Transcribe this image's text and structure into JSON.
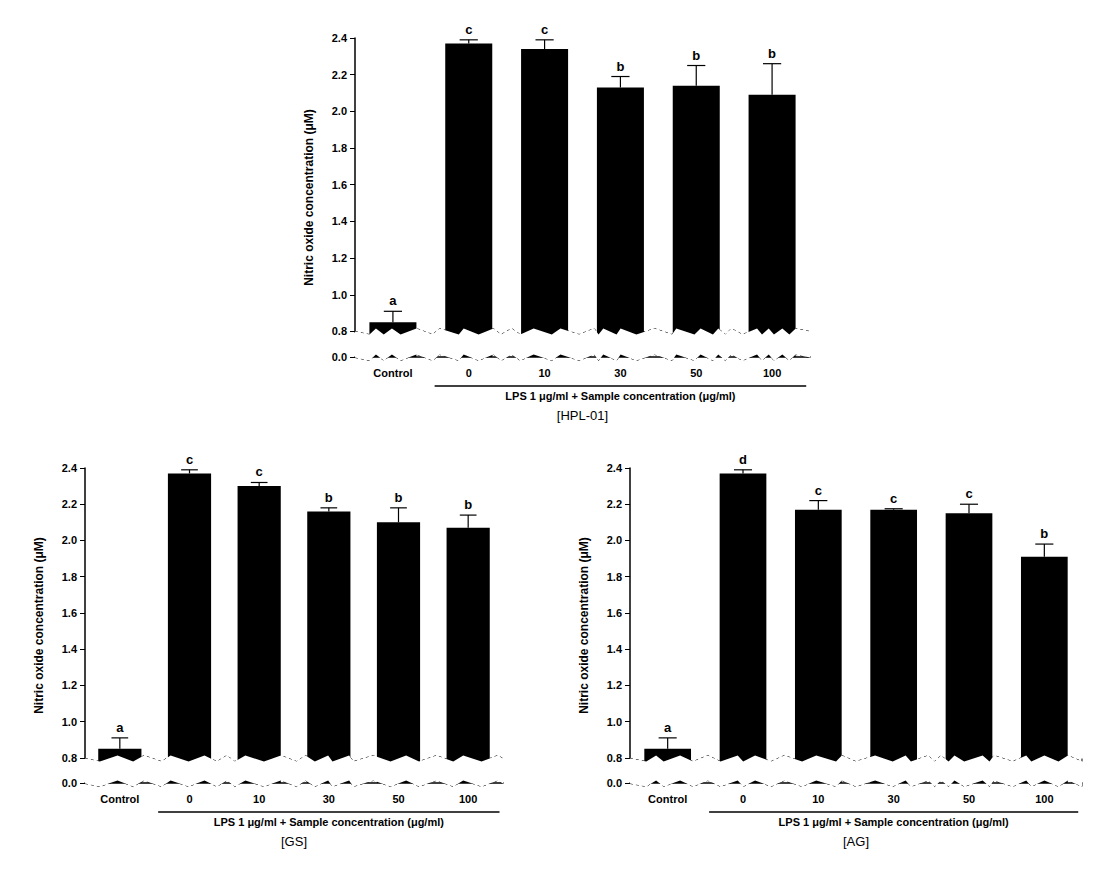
{
  "chart_data": [
    {
      "type": "bar",
      "title": "[HPL-01]",
      "categories": [
        "Control",
        "0",
        "10",
        "30",
        "50",
        "100"
      ],
      "values": [
        0.85,
        2.37,
        2.34,
        2.13,
        2.14,
        2.09
      ],
      "error": [
        0.06,
        0.02,
        0.05,
        0.06,
        0.11,
        0.17
      ],
      "annotations": [
        "a",
        "c",
        "c",
        "b",
        "b",
        "b"
      ],
      "color": "#000000",
      "xlabel": "LPS 1 μg/ml + Sample concentration (μg/ml)",
      "ylabel": "Nitric oxide concentration (μM)",
      "ylim": [
        0,
        2.4
      ],
      "yticks": [
        {
          "value": 0,
          "label": "0.0"
        },
        0.8,
        {
          "value": 1,
          "label": "1.0"
        },
        1.2,
        1.4,
        1.6,
        1.8,
        {
          "value": 2,
          "label": "2.0"
        },
        2.2,
        2.4
      ],
      "grid": false
    },
    {
      "type": "bar",
      "title": "[GS]",
      "categories": [
        "Control",
        "0",
        "10",
        "30",
        "50",
        "100"
      ],
      "values": [
        0.85,
        2.37,
        2.3,
        2.16,
        2.1,
        2.07
      ],
      "error": [
        0.06,
        0.02,
        0.02,
        0.02,
        0.08,
        0.07
      ],
      "annotations": [
        "a",
        "c",
        "c",
        "b",
        "b",
        "b"
      ],
      "color": "#000000",
      "xlabel": "LPS 1 μg/ml + Sample concentration (μg/ml)",
      "ylabel": "Nitric oxide concentration (μM)",
      "ylim": [
        0,
        2.4
      ],
      "yticks": [
        {
          "value": 0,
          "label": "0.0"
        },
        0.8,
        {
          "value": 1,
          "label": "1.0"
        },
        1.2,
        1.4,
        1.6,
        1.8,
        {
          "value": 2,
          "label": "2.0"
        },
        2.2,
        2.4
      ],
      "grid": false
    },
    {
      "type": "bar",
      "title": "[AG]",
      "categories": [
        "Control",
        "0",
        "10",
        "30",
        "50",
        "100"
      ],
      "values": [
        0.85,
        2.37,
        2.17,
        2.17,
        2.15,
        1.91
      ],
      "error": [
        0.06,
        0.02,
        0.05,
        0.005,
        0.05,
        0.07
      ],
      "annotations": [
        "a",
        "d",
        "c",
        "c",
        "c",
        "b"
      ],
      "color": "#000000",
      "xlabel": "LPS 1 μg/ml + Sample concentration (μg/ml)",
      "ylabel": "Nitric oxide concentration (μM)",
      "ylim": [
        0,
        2.4
      ],
      "yticks": [
        {
          "value": 0,
          "label": "0.0"
        },
        0.8,
        {
          "value": 1,
          "label": "1.0"
        },
        1.2,
        1.4,
        1.6,
        1.8,
        {
          "value": 2,
          "label": "2.0"
        },
        2.2,
        2.4
      ],
      "grid": false
    }
  ]
}
